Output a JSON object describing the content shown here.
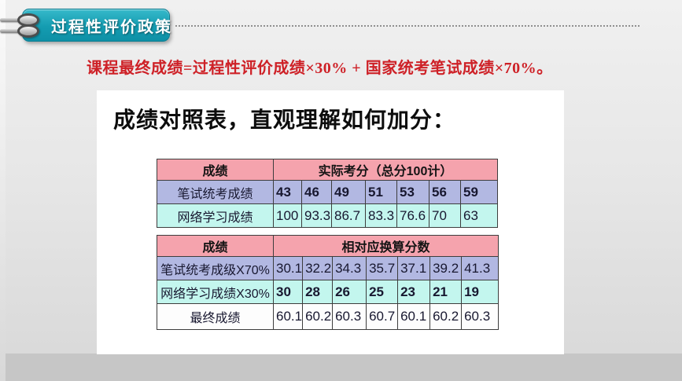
{
  "slide": {
    "badge_label": "过程性评价政策",
    "formula": "课程最终成绩=过程性评价成绩×30% + 国家统考笔试成绩×70%。",
    "panel_title": "成绩对照表，直观理解如何加分："
  },
  "tables": [
    {
      "header": {
        "label": "成绩",
        "title": "实际考分（总分100计）"
      },
      "rows": [
        {
          "label": "笔试统考成绩",
          "values": [
            "43",
            "46",
            "49",
            "51",
            "53",
            "56",
            "59"
          ],
          "variant": "lav",
          "red": true
        },
        {
          "label": "网络学习成绩",
          "values": [
            "100",
            "93.3",
            "86.7",
            "83.3",
            "76.6",
            "70",
            "63"
          ],
          "variant": "cyan",
          "red": false
        }
      ]
    },
    {
      "header": {
        "label": "成绩",
        "title": "相对应换算分数"
      },
      "rows": [
        {
          "label": "笔试统考成级X70%",
          "values": [
            "30.1",
            "32.2",
            "34.3",
            "35.7",
            "37.1",
            "39.2",
            "41.3"
          ],
          "variant": "lav",
          "red": false
        },
        {
          "label": "网络学习成绩X30%",
          "values": [
            "30",
            "28",
            "26",
            "25",
            "23",
            "21",
            "19"
          ],
          "variant": "cyan",
          "red": true
        },
        {
          "label": "最终成绩",
          "values": [
            "60.1",
            "60.2",
            "60.3",
            "60.7",
            "60.1",
            "60.2",
            "60.3"
          ],
          "variant": "white",
          "red": false,
          "final": true
        }
      ]
    }
  ],
  "colors": {
    "badge_teal": "#149cb1",
    "header_pink": "#f5a3ad",
    "row_lavender": "#b2b8e2",
    "row_cyan": "#c3f6ee",
    "row_white": "#fdfdfd",
    "red_text": "#ce2127"
  }
}
